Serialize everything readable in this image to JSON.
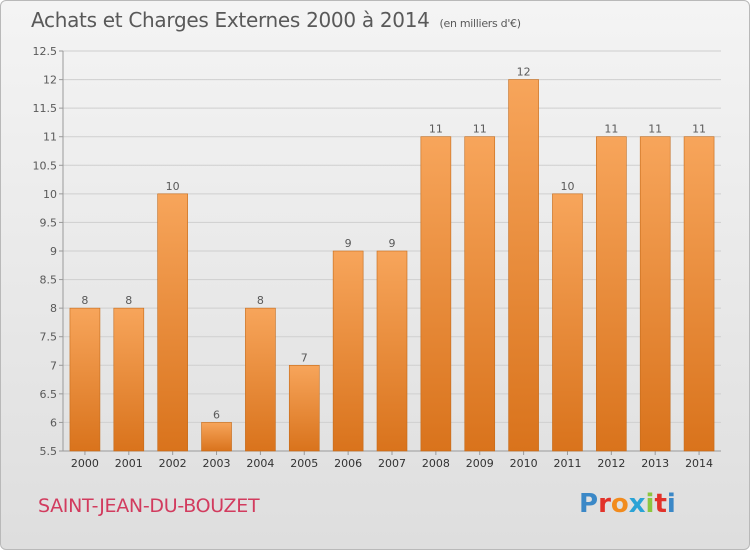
{
  "header": {
    "title": "Achats et Charges Externes 2000 à 2014",
    "unit": "(en milliers d'€)"
  },
  "footer": {
    "place": "SAINT-JEAN-DU-BOUZET",
    "logo": "Proxiti"
  },
  "colors": {
    "bar_top": "#f7a55b",
    "bar_bottom": "#d9731c",
    "bar_stroke": "#c46a19",
    "grid": "#cfcfcf",
    "text": "#595959",
    "place": "#d23b5e",
    "logo_letters": [
      "#3b88c7",
      "#e2322a",
      "#f28b1d",
      "#2aa3d6",
      "#8cc63f",
      "#e2322a",
      "#3b88c7"
    ]
  },
  "chart_data": {
    "type": "bar",
    "categories": [
      "2000",
      "2001",
      "2002",
      "2003",
      "2004",
      "2005",
      "2006",
      "2007",
      "2008",
      "2009",
      "2010",
      "2011",
      "2012",
      "2013",
      "2014"
    ],
    "values": [
      8,
      8,
      10,
      6,
      8,
      7,
      9,
      9,
      11,
      11,
      12,
      10,
      11,
      11,
      11
    ],
    "data_labels": [
      "8",
      "8",
      "10",
      "6",
      "8",
      "7",
      "9",
      "9",
      "11",
      "11",
      "12",
      "10",
      "11",
      "11",
      "11"
    ],
    "ylim": [
      5.5,
      12.5
    ],
    "yticks": [
      5.5,
      6,
      6.5,
      7,
      7.5,
      8,
      8.5,
      9,
      9.5,
      10,
      10.5,
      11,
      11.5,
      12,
      12.5
    ],
    "ytick_labels": [
      "5.5",
      "6",
      "6.5",
      "7",
      "7.5",
      "8",
      "8.5",
      "9",
      "9.5",
      "10",
      "10.5",
      "11",
      "11.5",
      "12",
      "12.5"
    ],
    "grid": true,
    "legend": "none"
  }
}
